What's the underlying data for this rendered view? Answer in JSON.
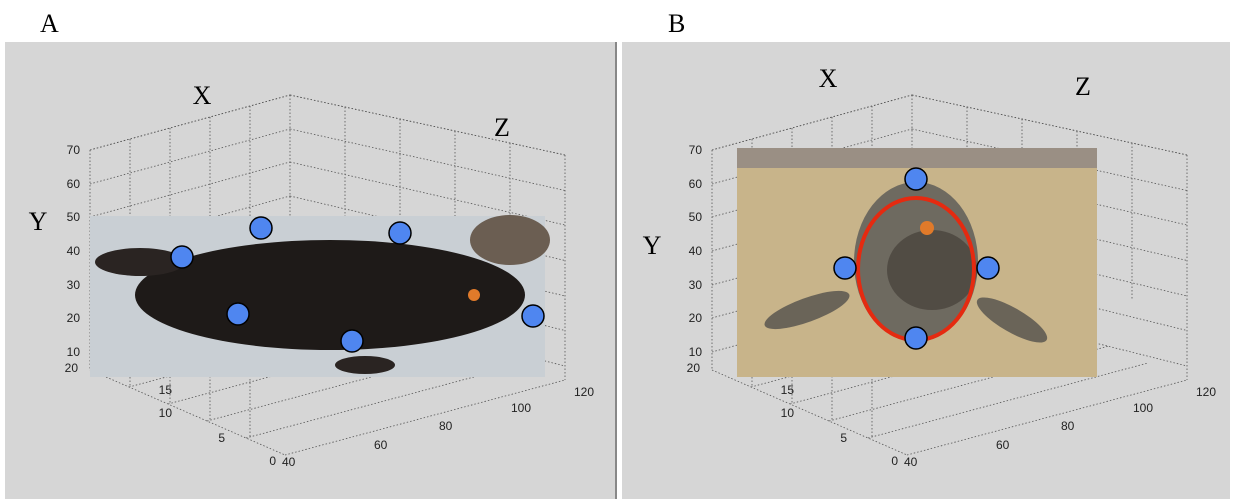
{
  "panels": [
    {
      "label": "A",
      "axes": {
        "x": "X",
        "y": "Y",
        "z": "Z"
      },
      "y_ticks": [
        70,
        60,
        50,
        40,
        30,
        20,
        10
      ],
      "depth_ticks": [
        20,
        15,
        10,
        5,
        0
      ],
      "x_ticks": [
        40,
        60,
        80,
        100,
        120
      ]
    },
    {
      "label": "B",
      "axes": {
        "x": "X",
        "y": "Y",
        "z": "Z"
      },
      "y_ticks": [
        70,
        60,
        50,
        40,
        30,
        20,
        10
      ],
      "depth_ticks": [
        20,
        15,
        10,
        5,
        0
      ],
      "x_ticks": [
        40,
        60,
        80,
        100,
        120
      ]
    }
  ]
}
